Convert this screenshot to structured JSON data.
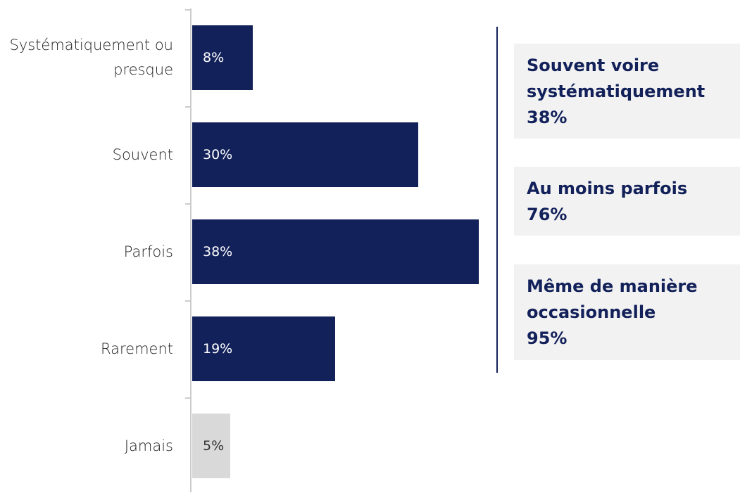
{
  "chart_data": {
    "type": "bar",
    "orientation": "horizontal",
    "categories": [
      "Systématiquement ou presque",
      "Souvent",
      "Parfois",
      "Rarement",
      "Jamais"
    ],
    "values": [
      8,
      30,
      38,
      19,
      5
    ],
    "value_labels": [
      "8%",
      "30%",
      "38%",
      "19%",
      "5%"
    ],
    "colors": [
      "#13215a",
      "#13215a",
      "#13215a",
      "#13215a",
      "#d9d9d9"
    ],
    "annotations": [
      {
        "text": "Souvent voire systématiquement",
        "label": "38%"
      },
      {
        "text": "Au moins parfois",
        "label": "76%"
      },
      {
        "text": "Même de manière occasionnelle",
        "label": "95%"
      }
    ]
  }
}
